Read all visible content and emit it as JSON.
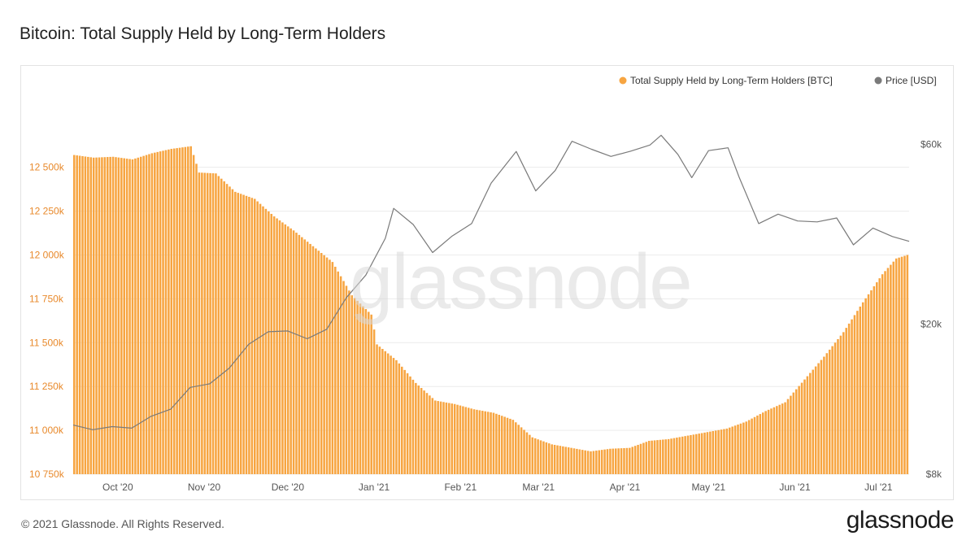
{
  "header": {
    "title": "Bitcoin: Total Supply Held by Long-Term Holders"
  },
  "footer": {
    "copyright": "© 2021 Glassnode. All Rights Reserved."
  },
  "brand": {
    "logo_text": "glassnode",
    "watermark_text": "glassnode"
  },
  "chart_data": {
    "type": "bar",
    "title": "Bitcoin: Total Supply Held by Long-Term Holders",
    "x_range": [
      "2020-09-15",
      "2021-07-12"
    ],
    "x_ticks": [
      {
        "date": "2020-10-01",
        "label": "Oct '20"
      },
      {
        "date": "2020-11-01",
        "label": "Nov '20"
      },
      {
        "date": "2020-12-01",
        "label": "Dec '20"
      },
      {
        "date": "2021-01-01",
        "label": "Jan '21"
      },
      {
        "date": "2021-02-01",
        "label": "Feb '21"
      },
      {
        "date": "2021-03-01",
        "label": "Mar '21"
      },
      {
        "date": "2021-04-01",
        "label": "Apr '21"
      },
      {
        "date": "2021-05-01",
        "label": "May '21"
      },
      {
        "date": "2021-06-01",
        "label": "Jun '21"
      },
      {
        "date": "2021-07-01",
        "label": "Jul '21"
      }
    ],
    "y_left": {
      "unit": "BTC",
      "range": [
        10750000,
        12800000
      ],
      "ticks": [
        {
          "value": 10750000,
          "label": "10 750k"
        },
        {
          "value": 11000000,
          "label": "11 000k"
        },
        {
          "value": 11250000,
          "label": "11 250k"
        },
        {
          "value": 11500000,
          "label": "11 500k"
        },
        {
          "value": 11750000,
          "label": "11 750k"
        },
        {
          "value": 12000000,
          "label": "12 000k"
        },
        {
          "value": 12250000,
          "label": "12 250k"
        },
        {
          "value": 12500000,
          "label": "12 500k"
        }
      ]
    },
    "y_right": {
      "unit": "USD",
      "scale": "log",
      "range": [
        8000,
        72000
      ],
      "ticks": [
        {
          "value": 8000,
          "label": "$8k"
        },
        {
          "value": 20000,
          "label": "$20k"
        },
        {
          "value": 60000,
          "label": "$60k"
        }
      ]
    },
    "grid": "horizontal",
    "legend_position": "top-right",
    "colors": {
      "supply": "#f7a541",
      "price": "#7a7a7a",
      "axis_text_left": "#e8892b",
      "axis_text_right": "#555555"
    },
    "series": [
      {
        "name": "Total Supply Held by Long-Term Holders [BTC]",
        "type": "bar",
        "axis": "left",
        "color": "#f7a541",
        "points": [
          [
            "2020-09-15",
            12570000
          ],
          [
            "2020-09-22",
            12555000
          ],
          [
            "2020-09-29",
            12560000
          ],
          [
            "2020-10-06",
            12545000
          ],
          [
            "2020-10-13",
            12580000
          ],
          [
            "2020-10-20",
            12605000
          ],
          [
            "2020-10-27",
            12620000
          ],
          [
            "2020-10-30",
            12470000
          ],
          [
            "2020-11-05",
            12465000
          ],
          [
            "2020-11-12",
            12360000
          ],
          [
            "2020-11-19",
            12320000
          ],
          [
            "2020-11-26",
            12220000
          ],
          [
            "2020-12-03",
            12140000
          ],
          [
            "2020-12-10",
            12050000
          ],
          [
            "2020-12-17",
            11960000
          ],
          [
            "2020-12-24",
            11770000
          ],
          [
            "2020-12-31",
            11660000
          ],
          [
            "2021-01-02",
            11490000
          ],
          [
            "2021-01-09",
            11400000
          ],
          [
            "2021-01-16",
            11270000
          ],
          [
            "2021-01-23",
            11170000
          ],
          [
            "2021-01-30",
            11150000
          ],
          [
            "2021-02-06",
            11120000
          ],
          [
            "2021-02-13",
            11100000
          ],
          [
            "2021-02-20",
            11060000
          ],
          [
            "2021-02-27",
            10960000
          ],
          [
            "2021-03-06",
            10920000
          ],
          [
            "2021-03-13",
            10900000
          ],
          [
            "2021-03-20",
            10880000
          ],
          [
            "2021-03-27",
            10895000
          ],
          [
            "2021-04-03",
            10900000
          ],
          [
            "2021-04-10",
            10940000
          ],
          [
            "2021-04-17",
            10950000
          ],
          [
            "2021-04-24",
            10970000
          ],
          [
            "2021-05-01",
            10990000
          ],
          [
            "2021-05-08",
            11010000
          ],
          [
            "2021-05-15",
            11050000
          ],
          [
            "2021-05-22",
            11110000
          ],
          [
            "2021-05-29",
            11160000
          ],
          [
            "2021-06-05",
            11290000
          ],
          [
            "2021-06-12",
            11420000
          ],
          [
            "2021-06-19",
            11560000
          ],
          [
            "2021-06-26",
            11730000
          ],
          [
            "2021-07-03",
            11890000
          ],
          [
            "2021-07-08",
            11980000
          ],
          [
            "2021-07-12",
            12000000
          ]
        ]
      },
      {
        "name": "Price [USD]",
        "type": "line",
        "axis": "right",
        "color": "#7a7a7a",
        "points": [
          [
            "2020-09-15",
            10800
          ],
          [
            "2020-09-22",
            10500
          ],
          [
            "2020-09-29",
            10700
          ],
          [
            "2020-10-06",
            10600
          ],
          [
            "2020-10-13",
            11400
          ],
          [
            "2020-10-20",
            11900
          ],
          [
            "2020-10-27",
            13600
          ],
          [
            "2020-11-03",
            13900
          ],
          [
            "2020-11-10",
            15300
          ],
          [
            "2020-11-17",
            17700
          ],
          [
            "2020-11-24",
            19100
          ],
          [
            "2020-12-01",
            19200
          ],
          [
            "2020-12-08",
            18300
          ],
          [
            "2020-12-15",
            19400
          ],
          [
            "2020-12-22",
            23500
          ],
          [
            "2020-12-29",
            27000
          ],
          [
            "2021-01-05",
            33800
          ],
          [
            "2021-01-08",
            40600
          ],
          [
            "2021-01-15",
            36800
          ],
          [
            "2021-01-22",
            31000
          ],
          [
            "2021-01-29",
            34300
          ],
          [
            "2021-02-05",
            37000
          ],
          [
            "2021-02-12",
            47400
          ],
          [
            "2021-02-21",
            57500
          ],
          [
            "2021-02-28",
            45200
          ],
          [
            "2021-03-07",
            51200
          ],
          [
            "2021-03-13",
            61200
          ],
          [
            "2021-03-20",
            58300
          ],
          [
            "2021-03-27",
            55800
          ],
          [
            "2021-04-03",
            57600
          ],
          [
            "2021-04-10",
            59800
          ],
          [
            "2021-04-14",
            63500
          ],
          [
            "2021-04-20",
            56500
          ],
          [
            "2021-04-25",
            49000
          ],
          [
            "2021-05-01",
            57800
          ],
          [
            "2021-05-08",
            58800
          ],
          [
            "2021-05-12",
            49100
          ],
          [
            "2021-05-19",
            37000
          ],
          [
            "2021-05-26",
            39200
          ],
          [
            "2021-06-02",
            37600
          ],
          [
            "2021-06-09",
            37400
          ],
          [
            "2021-06-16",
            38300
          ],
          [
            "2021-06-22",
            32500
          ],
          [
            "2021-06-29",
            36000
          ],
          [
            "2021-07-06",
            34200
          ],
          [
            "2021-07-12",
            33200
          ]
        ]
      }
    ]
  }
}
